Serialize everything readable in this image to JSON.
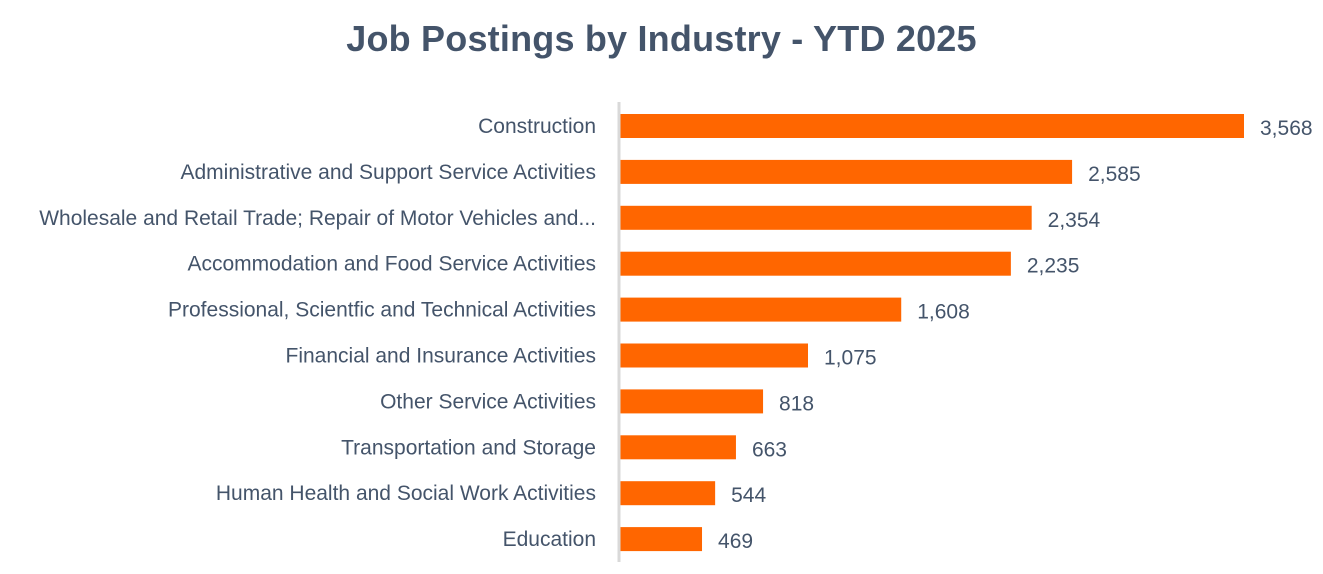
{
  "chart_data": {
    "type": "bar",
    "orientation": "horizontal",
    "title": "Job Postings by Industry - YTD 2025",
    "xlabel": "",
    "ylabel": "",
    "categories": [
      "Construction",
      "Administrative and Support Service Activities",
      "Wholesale and Retail Trade; Repair of Motor Vehicles and...",
      "Accommodation and Food Service Activities",
      "Professional, Scientfic and Technical Activities",
      "Financial and Insurance Activities",
      "Other Service Activities",
      "Transportation and Storage",
      "Human Health and Social Work Activities",
      "Education"
    ],
    "values": [
      3568,
      2585,
      2354,
      2235,
      1608,
      1075,
      818,
      663,
      544,
      469
    ],
    "value_labels": [
      "3,568",
      "2,585",
      "2,354",
      "2,235",
      "1,608",
      "1,075",
      "818",
      "663",
      "544",
      "469"
    ],
    "xlim": [
      0,
      3568
    ],
    "grid": false,
    "legend": "none",
    "bar_color": "#ff6600",
    "axis_color": "#d9d9d9",
    "text_color": "#44546a"
  }
}
